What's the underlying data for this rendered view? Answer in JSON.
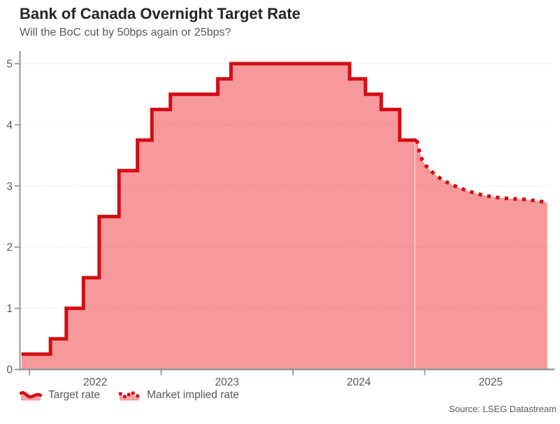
{
  "header": {
    "title": "Bank of Canada Overnight Target Rate",
    "subtitle": "Will the BoC cut by 50bps again or 25bps?"
  },
  "legend": {
    "items": [
      {
        "label": "Target rate",
        "style": "solid-step-area"
      },
      {
        "label": "Market implied rate",
        "style": "dotted-area"
      }
    ]
  },
  "source": "Source: LSEG Datastream",
  "colors": {
    "line": "#d40d13",
    "area_fill": "rgba(237,28,36,0.45)",
    "legend_fill": "#f5a3a4",
    "axis": "#969696",
    "grid": "#d9d9d9",
    "text_dark": "#262626",
    "text_gray": "#595959",
    "forecast_divider": "rgba(255,255,255,0.55)"
  },
  "chart_data": {
    "type": "area",
    "title": "Bank of Canada Overnight Target Rate",
    "subtitle": "Will the BoC cut by 50bps again or 25bps?",
    "xlabel": "",
    "ylabel": "",
    "x_range_years": [
      2021.93,
      2025.97
    ],
    "ylim": [
      0,
      5.2
    ],
    "y_ticks": [
      0,
      1,
      2,
      3,
      4,
      5
    ],
    "x_ticks": [
      2022,
      2023,
      2024,
      2025
    ],
    "x_tick_labels": [
      "2022",
      "2023",
      "2024",
      "2025"
    ],
    "grid": "horizontal-dotted",
    "legend_position": "bottom-left",
    "series": [
      {
        "name": "Target rate",
        "style": "solid-step",
        "points": [
          [
            2021.94,
            0.25
          ],
          [
            2022.16,
            0.5
          ],
          [
            2022.28,
            1.0
          ],
          [
            2022.41,
            1.5
          ],
          [
            2022.53,
            2.5
          ],
          [
            2022.68,
            3.25
          ],
          [
            2022.82,
            3.75
          ],
          [
            2022.93,
            4.25
          ],
          [
            2023.07,
            4.5
          ],
          [
            2023.43,
            4.75
          ],
          [
            2023.53,
            5.0
          ],
          [
            2024.43,
            4.75
          ],
          [
            2024.55,
            4.5
          ],
          [
            2024.67,
            4.25
          ],
          [
            2024.81,
            3.75
          ],
          [
            2024.94,
            3.75
          ]
        ]
      },
      {
        "name": "Market implied rate",
        "style": "dotted",
        "points": [
          [
            2024.94,
            3.75
          ],
          [
            2024.96,
            3.56
          ],
          [
            2024.98,
            3.43
          ],
          [
            2025.01,
            3.33
          ],
          [
            2025.05,
            3.24
          ],
          [
            2025.1,
            3.15
          ],
          [
            2025.16,
            3.07
          ],
          [
            2025.23,
            3.0
          ],
          [
            2025.3,
            2.94
          ],
          [
            2025.37,
            2.89
          ],
          [
            2025.44,
            2.85
          ],
          [
            2025.52,
            2.82
          ],
          [
            2025.6,
            2.8
          ],
          [
            2025.68,
            2.79
          ],
          [
            2025.76,
            2.78
          ],
          [
            2025.84,
            2.76
          ],
          [
            2025.93,
            2.73
          ]
        ]
      }
    ],
    "forecast_divider_x_year": 2024.925
  }
}
